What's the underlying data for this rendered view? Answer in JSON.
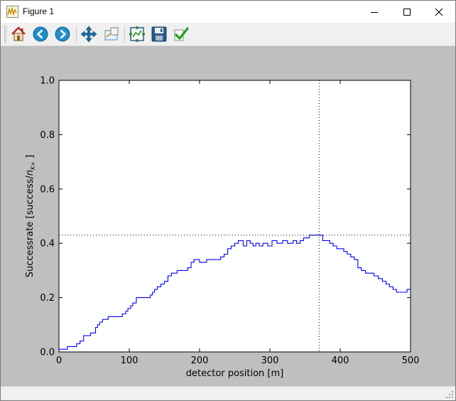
{
  "window": {
    "title": "Figure 1"
  },
  "toolbar": {
    "buttons": [
      {
        "name": "home-icon",
        "label": "Home"
      },
      {
        "name": "back-icon",
        "label": "Back"
      },
      {
        "name": "forward-icon",
        "label": "Forward"
      },
      {
        "name": "pan-icon",
        "label": "Pan"
      },
      {
        "name": "zoom-icon",
        "label": "Zoom"
      },
      {
        "name": "subplots-icon",
        "label": "Subplots"
      },
      {
        "name": "save-icon",
        "label": "Save"
      },
      {
        "name": "edit-check-icon",
        "label": "Edit"
      }
    ]
  },
  "chart_data": {
    "type": "line",
    "title": "",
    "xlabel": "detector position [m]",
    "ylabel": "Successrate [success/n_K+]",
    "ylabel_main": "Successrate [success/",
    "ylabel_sym": "n",
    "ylabel_sub": "K+",
    "ylabel_end": "]",
    "xlim": [
      0,
      500
    ],
    "ylim": [
      0.0,
      1.0
    ],
    "x_ticks": [
      "0",
      "100",
      "200",
      "300",
      "400",
      "500"
    ],
    "y_ticks": [
      "0.0",
      "0.2",
      "0.4",
      "0.6",
      "0.8",
      "1.0"
    ],
    "grid": false,
    "line_color": "#0000ff",
    "marker_x": 370,
    "marker_y": 0.43,
    "series": [
      {
        "name": "",
        "x": [
          0,
          12,
          25,
          30,
          35,
          45,
          52,
          55,
          58,
          62,
          66,
          70,
          75,
          80,
          85,
          90,
          95,
          98,
          102,
          105,
          110,
          115,
          120,
          125,
          130,
          133,
          136,
          140,
          145,
          150,
          155,
          160,
          165,
          168,
          172,
          177,
          183,
          188,
          192,
          200,
          210,
          218,
          225,
          230,
          235,
          240,
          245,
          250,
          255,
          262,
          267,
          272,
          276,
          280,
          285,
          290,
          297,
          303,
          310,
          318,
          325,
          333,
          338,
          343,
          348,
          352,
          356,
          360,
          365,
          370,
          375,
          380,
          385,
          390,
          395,
          400,
          405,
          410,
          415,
          420,
          425,
          430,
          436,
          442,
          448,
          454,
          460,
          465,
          470,
          475,
          480,
          485,
          490,
          495,
          500
        ],
        "y": [
          0.01,
          0.02,
          0.03,
          0.04,
          0.06,
          0.07,
          0.09,
          0.1,
          0.11,
          0.12,
          0.12,
          0.13,
          0.13,
          0.13,
          0.13,
          0.14,
          0.15,
          0.16,
          0.17,
          0.18,
          0.2,
          0.2,
          0.2,
          0.2,
          0.21,
          0.22,
          0.23,
          0.24,
          0.25,
          0.26,
          0.28,
          0.29,
          0.29,
          0.3,
          0.3,
          0.3,
          0.31,
          0.33,
          0.34,
          0.33,
          0.34,
          0.34,
          0.34,
          0.35,
          0.36,
          0.38,
          0.39,
          0.4,
          0.41,
          0.39,
          0.41,
          0.4,
          0.39,
          0.4,
          0.39,
          0.4,
          0.39,
          0.41,
          0.4,
          0.41,
          0.4,
          0.41,
          0.4,
          0.41,
          0.42,
          0.42,
          0.43,
          0.43,
          0.43,
          0.43,
          0.41,
          0.41,
          0.4,
          0.39,
          0.38,
          0.38,
          0.37,
          0.36,
          0.35,
          0.34,
          0.31,
          0.3,
          0.29,
          0.29,
          0.28,
          0.27,
          0.26,
          0.25,
          0.24,
          0.23,
          0.22,
          0.22,
          0.22,
          0.23,
          0.23
        ]
      }
    ]
  }
}
